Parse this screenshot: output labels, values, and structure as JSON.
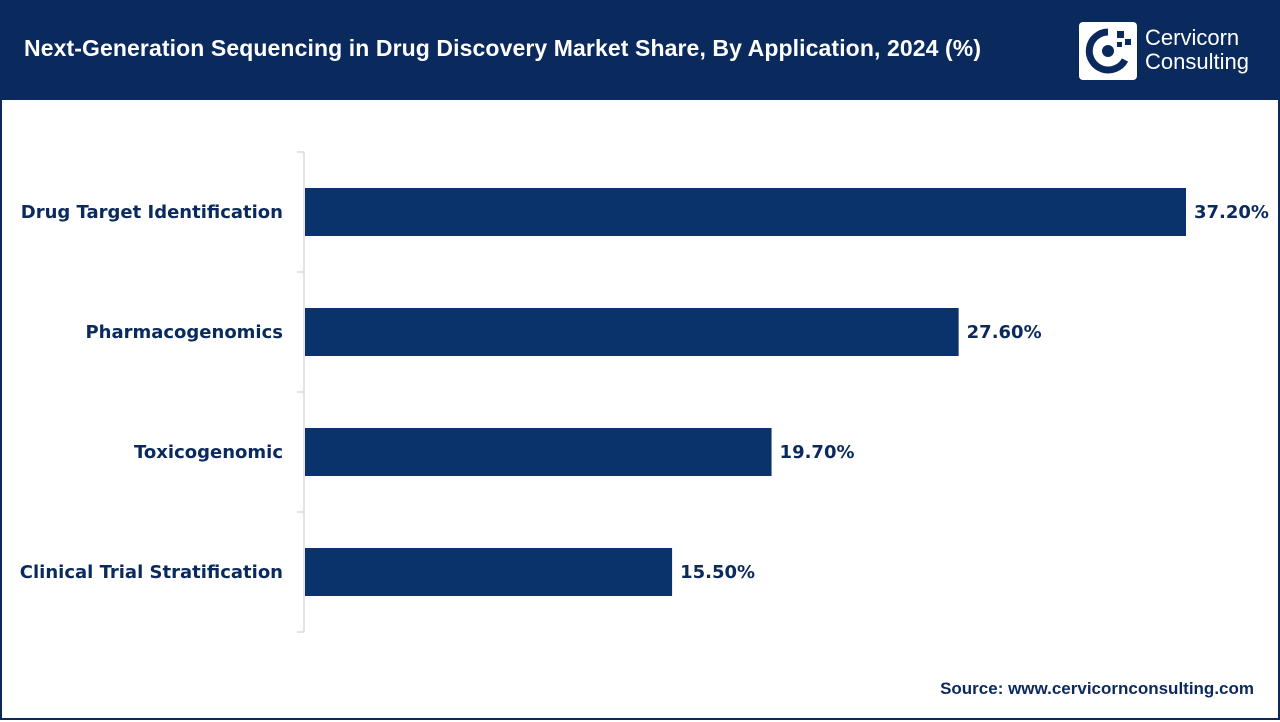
{
  "header": {
    "title": "Next-Generation Sequencing in Drug Discovery Market Share, By Application, 2024 (%)"
  },
  "logo": {
    "line1": "Cervicorn",
    "line2": "Consulting",
    "icon": "cervicorn-logo-icon"
  },
  "colors": {
    "brand": "#0a2a5e",
    "bar": "#0a326b",
    "background": "#ffffff"
  },
  "chart_data": {
    "type": "bar",
    "orientation": "horizontal",
    "title": "Next-Generation Sequencing in Drug Discovery Market Share, By Application, 2024 (%)",
    "categories": [
      "Drug Target Identification",
      "Pharmacogenomics",
      "Toxicogenomic",
      "Clinical Trial Stratification"
    ],
    "values": [
      37.2,
      27.6,
      19.7,
      15.5
    ],
    "value_labels": [
      "37.20%",
      "27.60%",
      "19.70%",
      "15.50%"
    ],
    "xlabel": "",
    "ylabel": "",
    "xlim": [
      0,
      37.2
    ],
    "grid": false,
    "legend": "none"
  },
  "footer": {
    "source": "Source: www.cervicornconsulting.com"
  }
}
